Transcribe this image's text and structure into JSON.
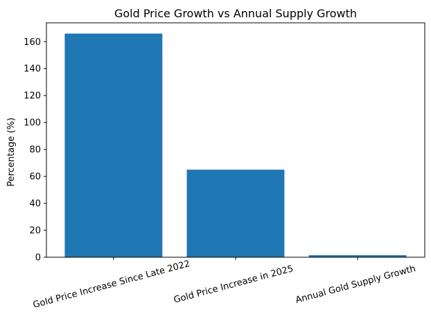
{
  "chart_data": {
    "type": "bar",
    "title": "Gold Price Growth vs Annual Supply Growth",
    "xlabel": "",
    "ylabel": "Percentage (%)",
    "categories": [
      "Gold Price Increase Since Late 2022",
      "Gold Price Increase in 2025",
      "Annual Gold Supply Growth"
    ],
    "values": [
      166,
      65,
      1.5
    ],
    "ylim": [
      0,
      174
    ],
    "yticks": [
      0,
      20,
      40,
      60,
      80,
      100,
      120,
      140,
      160
    ],
    "grid": false,
    "legend": "none",
    "bar_color": "#1f77b4"
  }
}
